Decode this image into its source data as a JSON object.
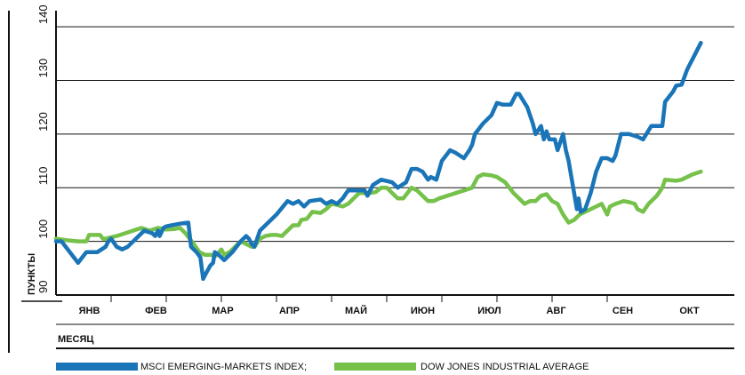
{
  "chart_data": {
    "type": "line",
    "ylabel": "ПУНКТЫ",
    "xlabel": "МЕСЯЦ",
    "ylim": [
      90,
      143
    ],
    "yticks": [
      90,
      100,
      110,
      120,
      130,
      140
    ],
    "categories": [
      "ЯНВ",
      "ФЕВ",
      "МАР",
      "АПР",
      "МАЙ",
      "ИЮН",
      "ИЮЛ",
      "АВГ",
      "СЕН",
      "ОКТ"
    ],
    "grid": true,
    "legend_position": "bottom",
    "series": [
      {
        "name": "MSCI EMERGING-MARKETS INDEX;",
        "color": "#1a75b8",
        "points": [
          [
            0.0,
            100.0
          ],
          [
            0.1,
            100.0
          ],
          [
            0.4,
            96.0
          ],
          [
            0.55,
            98.0
          ],
          [
            0.75,
            98.0
          ],
          [
            0.9,
            99.0
          ],
          [
            0.95,
            100.0
          ],
          [
            1.0,
            100.5
          ],
          [
            1.1,
            99.0
          ],
          [
            1.2,
            98.5
          ],
          [
            1.3,
            99.0
          ],
          [
            1.5,
            101.0
          ],
          [
            1.6,
            102.0
          ],
          [
            1.75,
            101.5
          ],
          [
            1.8,
            101.0
          ],
          [
            1.85,
            102.0
          ],
          [
            1.88,
            101.0
          ],
          [
            1.95,
            102.5
          ],
          [
            2.0,
            102.8
          ],
          [
            2.1,
            103.0
          ],
          [
            2.25,
            103.3
          ],
          [
            2.4,
            103.5
          ],
          [
            2.45,
            99.0
          ],
          [
            2.55,
            98.0
          ],
          [
            2.62,
            97.0
          ],
          [
            2.67,
            93.0
          ],
          [
            2.72,
            94.0
          ],
          [
            2.8,
            95.5
          ],
          [
            2.85,
            96.0
          ],
          [
            2.88,
            98.0
          ],
          [
            2.95,
            97.5
          ],
          [
            3.05,
            96.5
          ],
          [
            3.2,
            98.0
          ],
          [
            3.35,
            100.0
          ],
          [
            3.45,
            101.0
          ],
          [
            3.5,
            100.5
          ],
          [
            3.55,
            99.5
          ],
          [
            3.6,
            99.0
          ],
          [
            3.7,
            102.0
          ],
          [
            3.8,
            103.0
          ],
          [
            4.0,
            105.0
          ],
          [
            4.2,
            107.5
          ],
          [
            4.3,
            107.0
          ],
          [
            4.4,
            107.5
          ],
          [
            4.5,
            106.5
          ],
          [
            4.6,
            107.5
          ],
          [
            4.8,
            107.8
          ],
          [
            4.9,
            107.0
          ],
          [
            5.0,
            107.5
          ],
          [
            5.1,
            107.0
          ],
          [
            5.2,
            108.0
          ],
          [
            5.3,
            109.5
          ],
          [
            5.5,
            109.5
          ],
          [
            5.6,
            109.5
          ],
          [
            5.65,
            108.5
          ],
          [
            5.75,
            110.5
          ],
          [
            5.9,
            111.5
          ],
          [
            6.1,
            111.0
          ],
          [
            6.2,
            110.0
          ],
          [
            6.35,
            111.0
          ],
          [
            6.45,
            113.5
          ],
          [
            6.55,
            113.5
          ],
          [
            6.65,
            113.0
          ],
          [
            6.75,
            111.5
          ],
          [
            6.8,
            112.0
          ],
          [
            6.9,
            111.5
          ],
          [
            7.0,
            115.0
          ],
          [
            7.15,
            117.0
          ],
          [
            7.25,
            116.5
          ],
          [
            7.4,
            115.5
          ],
          [
            7.5,
            117.0
          ],
          [
            7.55,
            118.0
          ],
          [
            7.6,
            120.0
          ],
          [
            7.75,
            122.0
          ],
          [
            7.9,
            123.5
          ],
          [
            8.0,
            125.8
          ],
          [
            8.1,
            125.5
          ],
          [
            8.25,
            125.5
          ],
          [
            8.35,
            127.5
          ],
          [
            8.4,
            127.5
          ],
          [
            8.55,
            125.0
          ],
          [
            8.65,
            122.0
          ],
          [
            8.7,
            120.0
          ],
          [
            8.8,
            121.5
          ],
          [
            8.85,
            119.0
          ],
          [
            8.9,
            120.5
          ],
          [
            8.95,
            119.0
          ],
          [
            9.05,
            119.0
          ],
          [
            9.1,
            117.0
          ],
          [
            9.2,
            120.0
          ],
          [
            9.25,
            117.0
          ],
          [
            9.3,
            115.0
          ],
          [
            9.35,
            112.0
          ],
          [
            9.4,
            109.0
          ],
          [
            9.45,
            106.0
          ],
          [
            9.48,
            108.0
          ],
          [
            9.52,
            105.5
          ],
          [
            9.6,
            106.0
          ],
          [
            9.7,
            109.0
          ],
          [
            9.8,
            113.0
          ],
          [
            9.9,
            115.5
          ],
          [
            10.0,
            115.5
          ],
          [
            10.1,
            115.0
          ],
          [
            10.15,
            116.0
          ],
          [
            10.25,
            120.0
          ],
          [
            10.4,
            120.0
          ],
          [
            10.55,
            119.5
          ],
          [
            10.65,
            119.0
          ],
          [
            10.8,
            121.5
          ],
          [
            11.0,
            121.5
          ],
          [
            11.05,
            126.0
          ],
          [
            11.2,
            128.0
          ],
          [
            11.25,
            129.0
          ],
          [
            11.35,
            129.2
          ],
          [
            11.45,
            132.0
          ],
          [
            11.6,
            135.0
          ],
          [
            11.7,
            137.0
          ]
        ]
      },
      {
        "name": "DOW JONES INDUSTRIAL AVERAGE",
        "color": "#75c14a",
        "points": [
          [
            0.0,
            100.5
          ],
          [
            0.2,
            100.2
          ],
          [
            0.4,
            100.0
          ],
          [
            0.55,
            100.0
          ],
          [
            0.6,
            101.2
          ],
          [
            0.8,
            101.2
          ],
          [
            0.85,
            100.5
          ],
          [
            0.9,
            100.5
          ],
          [
            1.1,
            101.0
          ],
          [
            1.25,
            101.5
          ],
          [
            1.4,
            102.0
          ],
          [
            1.55,
            102.5
          ],
          [
            1.7,
            102.0
          ],
          [
            1.85,
            102.5
          ],
          [
            2.0,
            102.2
          ],
          [
            2.15,
            102.3
          ],
          [
            2.25,
            102.5
          ],
          [
            2.35,
            101.5
          ],
          [
            2.5,
            99.5
          ],
          [
            2.6,
            98.0
          ],
          [
            2.7,
            97.5
          ],
          [
            2.8,
            97.5
          ],
          [
            2.9,
            97.3
          ],
          [
            3.0,
            98.5
          ],
          [
            3.05,
            97.5
          ],
          [
            3.15,
            98.0
          ],
          [
            3.25,
            99.0
          ],
          [
            3.35,
            100.0
          ],
          [
            3.45,
            99.5
          ],
          [
            3.55,
            99.0
          ],
          [
            3.6,
            99.0
          ],
          [
            3.7,
            100.5
          ],
          [
            3.8,
            101.0
          ],
          [
            3.9,
            101.2
          ],
          [
            4.0,
            101.2
          ],
          [
            4.1,
            101.0
          ],
          [
            4.2,
            102.0
          ],
          [
            4.3,
            103.0
          ],
          [
            4.4,
            103.0
          ],
          [
            4.45,
            104.0
          ],
          [
            4.55,
            104.2
          ],
          [
            4.65,
            105.5
          ],
          [
            4.8,
            105.3
          ],
          [
            4.9,
            106.0
          ],
          [
            5.0,
            107.0
          ],
          [
            5.1,
            106.8
          ],
          [
            5.2,
            106.5
          ],
          [
            5.3,
            107.0
          ],
          [
            5.4,
            108.0
          ],
          [
            5.5,
            109.0
          ],
          [
            5.6,
            109.0
          ],
          [
            5.7,
            109.0
          ],
          [
            5.8,
            109.2
          ],
          [
            5.9,
            110.0
          ],
          [
            6.0,
            110.0
          ],
          [
            6.1,
            109.0
          ],
          [
            6.2,
            108.0
          ],
          [
            6.3,
            108.0
          ],
          [
            6.45,
            110.0
          ],
          [
            6.55,
            109.5
          ],
          [
            6.65,
            108.5
          ],
          [
            6.75,
            107.5
          ],
          [
            6.85,
            107.5
          ],
          [
            6.95,
            108.0
          ],
          [
            7.1,
            108.5
          ],
          [
            7.25,
            109.0
          ],
          [
            7.4,
            109.5
          ],
          [
            7.55,
            110.0
          ],
          [
            7.65,
            112.0
          ],
          [
            7.75,
            112.5
          ],
          [
            7.9,
            112.3
          ],
          [
            8.0,
            112.0
          ],
          [
            8.15,
            111.0
          ],
          [
            8.3,
            109.0
          ],
          [
            8.4,
            108.0
          ],
          [
            8.5,
            107.0
          ],
          [
            8.6,
            107.5
          ],
          [
            8.7,
            107.5
          ],
          [
            8.8,
            108.5
          ],
          [
            8.9,
            108.8
          ],
          [
            9.0,
            107.5
          ],
          [
            9.1,
            107.0
          ],
          [
            9.2,
            105.0
          ],
          [
            9.3,
            103.5
          ],
          [
            9.4,
            104.0
          ],
          [
            9.5,
            105.0
          ],
          [
            9.6,
            105.5
          ],
          [
            9.7,
            106.0
          ],
          [
            9.8,
            106.5
          ],
          [
            9.9,
            107.0
          ],
          [
            9.95,
            106.0
          ],
          [
            10.0,
            105.0
          ],
          [
            10.05,
            106.5
          ],
          [
            10.15,
            107.0
          ],
          [
            10.3,
            107.5
          ],
          [
            10.4,
            107.3
          ],
          [
            10.5,
            107.0
          ],
          [
            10.55,
            106.0
          ],
          [
            10.65,
            105.5
          ],
          [
            10.75,
            107.0
          ],
          [
            10.85,
            108.0
          ],
          [
            10.9,
            108.5
          ],
          [
            11.0,
            110.0
          ],
          [
            11.05,
            111.5
          ],
          [
            11.25,
            111.3
          ],
          [
            11.35,
            111.5
          ],
          [
            11.55,
            112.5
          ],
          [
            11.7,
            113.0
          ]
        ]
      }
    ]
  }
}
